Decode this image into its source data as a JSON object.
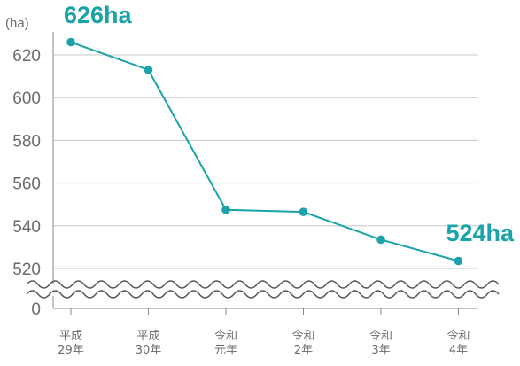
{
  "chart_data": {
    "type": "line",
    "categories": [
      [
        "平成",
        "29年"
      ],
      [
        "平成",
        "30年"
      ],
      [
        "令和",
        "元年"
      ],
      [
        "令和",
        "2年"
      ],
      [
        "令和",
        "3年"
      ],
      [
        "令和",
        "4年"
      ]
    ],
    "series": [
      {
        "values": [
          626,
          613,
          547.5,
          546.5,
          533.5,
          523.5
        ]
      }
    ],
    "ylabel": "(ha)",
    "yticks": [
      620,
      600,
      580,
      560,
      540,
      520
    ],
    "ylim": [
      510,
      634
    ],
    "axis_break": true,
    "axis_break_label": "0",
    "grid": true,
    "annotations": [
      "626ha",
      "524ha"
    ],
    "colors": {
      "line": "#1aa3a8",
      "grid": "#c8c8c8",
      "axis": "#8a8a8a",
      "text": "#6b6b6b"
    }
  }
}
